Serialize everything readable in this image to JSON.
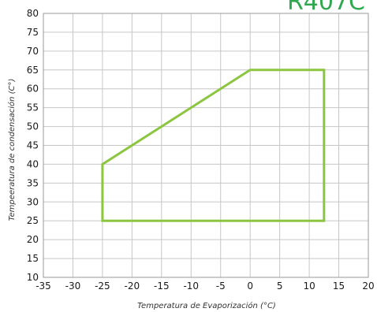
{
  "chart_data": {
    "type": "line",
    "title": "R407C",
    "xlabel": "Temperatura de Evaporización (°C)",
    "ylabel": "Tempeeratura de condensación (C°)",
    "xlim": [
      -35,
      20
    ],
    "ylim": [
      10,
      80
    ],
    "x_ticks": [
      -35,
      -30,
      -25,
      -20,
      -15,
      -10,
      -5,
      0,
      5,
      10,
      15,
      20
    ],
    "y_ticks": [
      10,
      15,
      20,
      25,
      30,
      35,
      40,
      45,
      50,
      55,
      60,
      65,
      70,
      75,
      80
    ],
    "grid": true,
    "series": [
      {
        "closed": true,
        "color": "#8cc63f",
        "points": [
          {
            "x": -25,
            "y": 25
          },
          {
            "x": -25,
            "y": 40
          },
          {
            "x": 0,
            "y": 65
          },
          {
            "x": 12.5,
            "y": 65
          },
          {
            "x": 12.5,
            "y": 25
          }
        ]
      }
    ],
    "colors": {
      "envelope": "#8cc63f",
      "title": "#2fa84f",
      "grid": "#c6c6c6",
      "frame": "#9a9a9a"
    }
  }
}
